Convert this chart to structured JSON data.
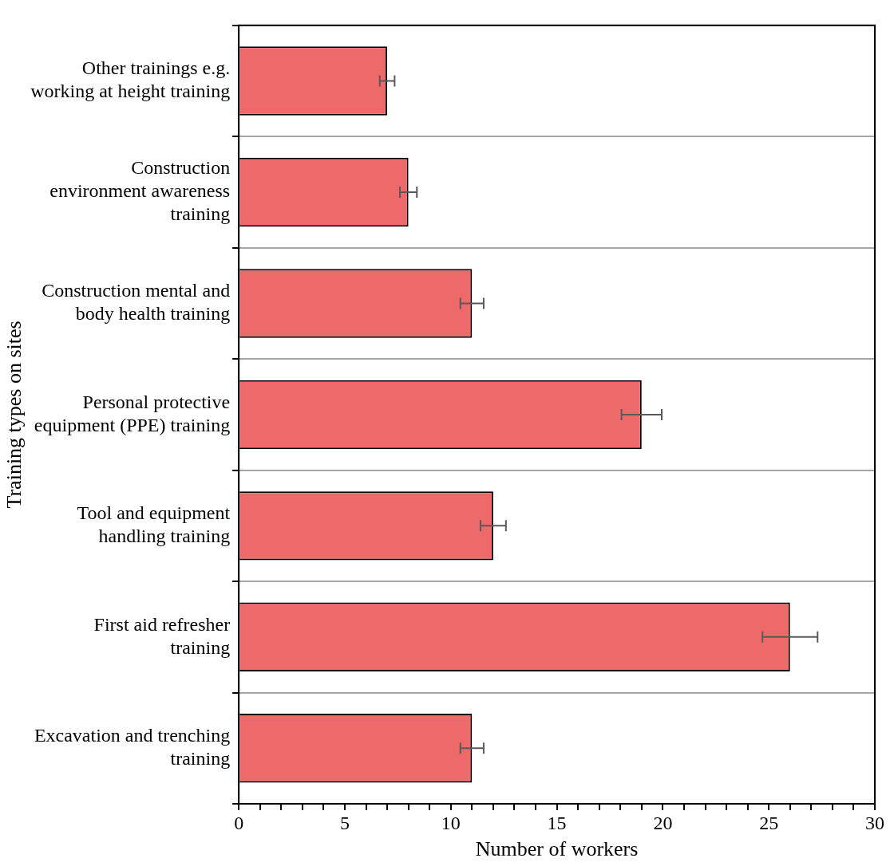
{
  "chart_data": {
    "type": "bar",
    "orientation": "horizontal",
    "xlabel": "Number of workers",
    "ylabel": "Training types on sites",
    "categories": [
      "Other trainings e.g. working at height training",
      "Construction environment awareness training",
      "Construction mental and body health training",
      "Personal protective equipment (PPE) training",
      "Tool and equipment handling training",
      "First aid refresher training",
      "Excavation and trenching training"
    ],
    "values": [
      7,
      8,
      11,
      19,
      12,
      26,
      11
    ],
    "errors": [
      0.35,
      0.4,
      0.55,
      0.95,
      0.6,
      1.3,
      0.55
    ],
    "color": "#ee6a6a",
    "xlim": [
      0,
      30
    ],
    "xticks": [
      0,
      {
        "value": 1,
        "label": null
      },
      {
        "value": 2,
        "label": null
      },
      {
        "value": 3,
        "label": null
      },
      {
        "value": 4,
        "label": null
      },
      5,
      {
        "value": 6,
        "label": null
      },
      {
        "value": 7,
        "label": null
      },
      {
        "value": 8,
        "label": null
      },
      {
        "value": 9,
        "label": null
      },
      10,
      {
        "value": 11,
        "label": null
      },
      {
        "value": 12,
        "label": null
      },
      {
        "value": 13,
        "label": null
      },
      {
        "value": 14,
        "label": null
      },
      15,
      {
        "value": 16,
        "label": null
      },
      {
        "value": 17,
        "label": null
      },
      {
        "value": 18,
        "label": null
      },
      {
        "value": 19,
        "label": null
      },
      20,
      {
        "value": 21,
        "label": null
      },
      {
        "value": 22,
        "label": null
      },
      {
        "value": 23,
        "label": null
      },
      {
        "value": 24,
        "label": null
      },
      25,
      {
        "value": 26,
        "label": null
      },
      {
        "value": 27,
        "label": null
      },
      {
        "value": 28,
        "label": null
      },
      {
        "value": 29,
        "label": null
      },
      30
    ],
    "grid": "y"
  }
}
